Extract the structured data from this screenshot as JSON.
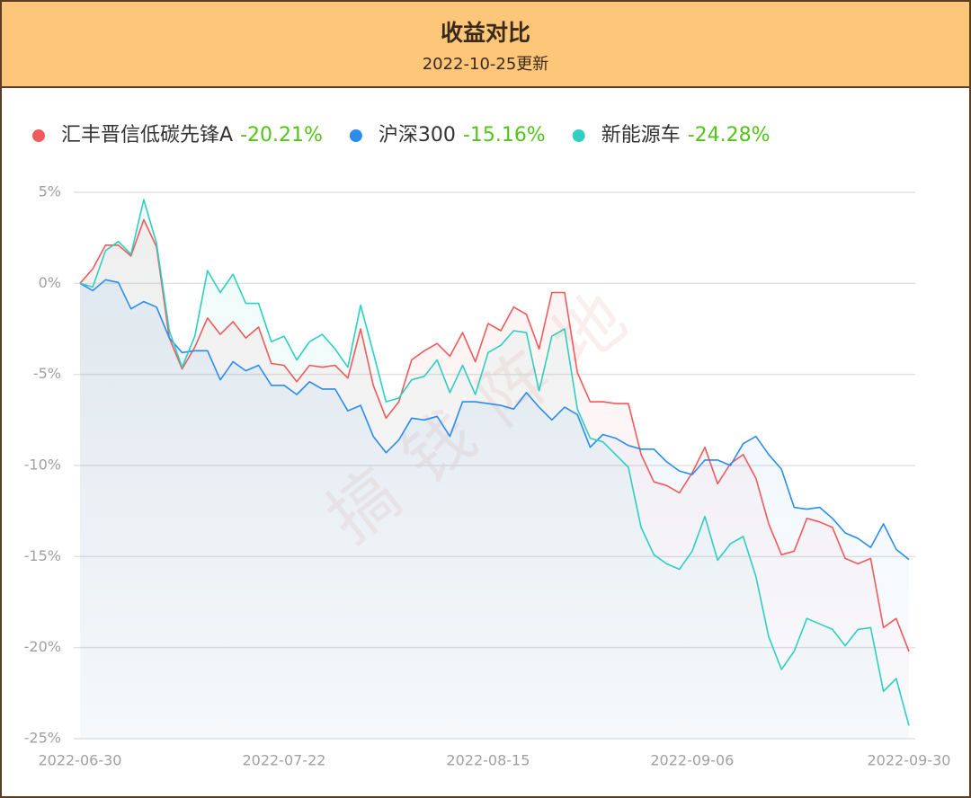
{
  "chart_data": {
    "type": "line",
    "title": "收益对比",
    "subtitle": "2022-10-25更新",
    "watermark": "搞钱阵地",
    "categories": [
      "2022-06-30",
      null,
      null,
      null,
      null,
      null,
      null,
      null,
      null,
      null,
      null,
      null,
      null,
      null,
      null,
      null,
      "2022-07-22",
      null,
      null,
      null,
      null,
      null,
      null,
      null,
      null,
      null,
      null,
      null,
      null,
      null,
      null,
      null,
      "2022-08-15",
      null,
      null,
      null,
      null,
      null,
      null,
      null,
      null,
      null,
      null,
      null,
      null,
      null,
      null,
      null,
      "2022-09-06",
      null,
      null,
      null,
      null,
      null,
      null,
      null,
      null,
      null,
      null,
      null,
      null,
      null,
      null,
      null,
      null,
      "2022-09-30"
    ],
    "ylim": [
      -25,
      5
    ],
    "yticks": [
      {
        "value": 5,
        "label": "5%"
      },
      {
        "value": 0,
        "label": "0%"
      },
      {
        "value": -5,
        "label": "-5%"
      },
      {
        "value": -10,
        "label": "-10%"
      },
      {
        "value": -15,
        "label": "-15%"
      },
      {
        "value": -20,
        "label": "-20%"
      },
      {
        "value": -25,
        "label": "-25%"
      }
    ],
    "grid": true,
    "series": [
      {
        "name": "汇丰晋信低碳先锋A",
        "color": "#f05a5b",
        "change": {
          "value": -20.21,
          "label": "-20.21%"
        },
        "values": [
          0,
          0.8,
          2.1,
          2.1,
          1.5,
          3.5,
          2.0,
          -3.0,
          -4.7,
          -3.5,
          -1.9,
          -2.8,
          -2.1,
          -3.0,
          -2.4,
          -4.4,
          -4.5,
          -5.4,
          -4.5,
          -4.6,
          -4.5,
          -5.2,
          -2.5,
          -5.6,
          -7.4,
          -6.5,
          -4.2,
          -3.7,
          -3.3,
          -4.0,
          -2.7,
          -4.3,
          -2.2,
          -2.6,
          -1.3,
          -1.7,
          -3.6,
          -0.5,
          -0.5,
          -4.9,
          -6.5,
          -6.5,
          -6.6,
          -6.6,
          -9.4,
          -10.9,
          -11.1,
          -11.5,
          -10.4,
          -9.0,
          -11.0,
          -9.9,
          -9.4,
          -10.7,
          -13.2,
          -14.9,
          -14.7,
          -12.9,
          -13.1,
          -13.4,
          -15.1,
          -15.4,
          -15.1,
          -18.9,
          -18.4,
          -20.21
        ]
      },
      {
        "name": "沪深300",
        "color": "#2a8cf0",
        "change": {
          "value": -15.16,
          "label": "-15.16%"
        },
        "values": [
          0,
          -0.4,
          0.2,
          0.05,
          -1.4,
          -1.0,
          -1.3,
          -3.0,
          -3.8,
          -3.7,
          -3.7,
          -5.3,
          -4.3,
          -4.8,
          -4.5,
          -5.6,
          -5.6,
          -6.1,
          -5.4,
          -5.8,
          -5.8,
          -7.0,
          -6.7,
          -8.4,
          -9.3,
          -8.6,
          -7.4,
          -7.5,
          -7.3,
          -8.4,
          -6.5,
          -6.5,
          -6.6,
          -6.7,
          -6.9,
          -6.0,
          -6.8,
          -7.5,
          -6.8,
          -7.2,
          -9.0,
          -8.3,
          -8.5,
          -8.9,
          -9.1,
          -9.1,
          -9.8,
          -10.3,
          -10.5,
          -9.7,
          -9.7,
          -10.0,
          -8.8,
          -8.4,
          -9.4,
          -10.2,
          -12.3,
          -12.4,
          -12.3,
          -12.9,
          -13.7,
          -14.0,
          -14.5,
          -13.2,
          -14.6,
          -15.16
        ]
      },
      {
        "name": "新能源车",
        "color": "#2ecfc0",
        "change": {
          "value": -24.28,
          "label": "-24.28%"
        },
        "values": [
          0,
          -0.2,
          1.8,
          2.3,
          1.6,
          4.6,
          2.2,
          -2.6,
          -4.6,
          -2.9,
          0.7,
          -0.5,
          0.5,
          -1.1,
          -1.1,
          -3.2,
          -2.9,
          -4.2,
          -3.2,
          -2.8,
          -3.6,
          -4.6,
          -1.2,
          -3.8,
          -6.5,
          -6.3,
          -5.3,
          -5.1,
          -4.2,
          -6.0,
          -4.5,
          -6.1,
          -3.8,
          -3.4,
          -2.6,
          -2.7,
          -5.9,
          -2.9,
          -2.5,
          -6.9,
          -8.5,
          -8.7,
          -9.4,
          -10.1,
          -13.4,
          -14.9,
          -15.4,
          -15.7,
          -14.7,
          -12.8,
          -15.2,
          -14.3,
          -13.9,
          -16.1,
          -19.4,
          -21.2,
          -20.2,
          -18.4,
          -18.7,
          -19.0,
          -19.9,
          -19.0,
          -18.9,
          -22.4,
          -21.7,
          -24.28
        ]
      }
    ]
  }
}
